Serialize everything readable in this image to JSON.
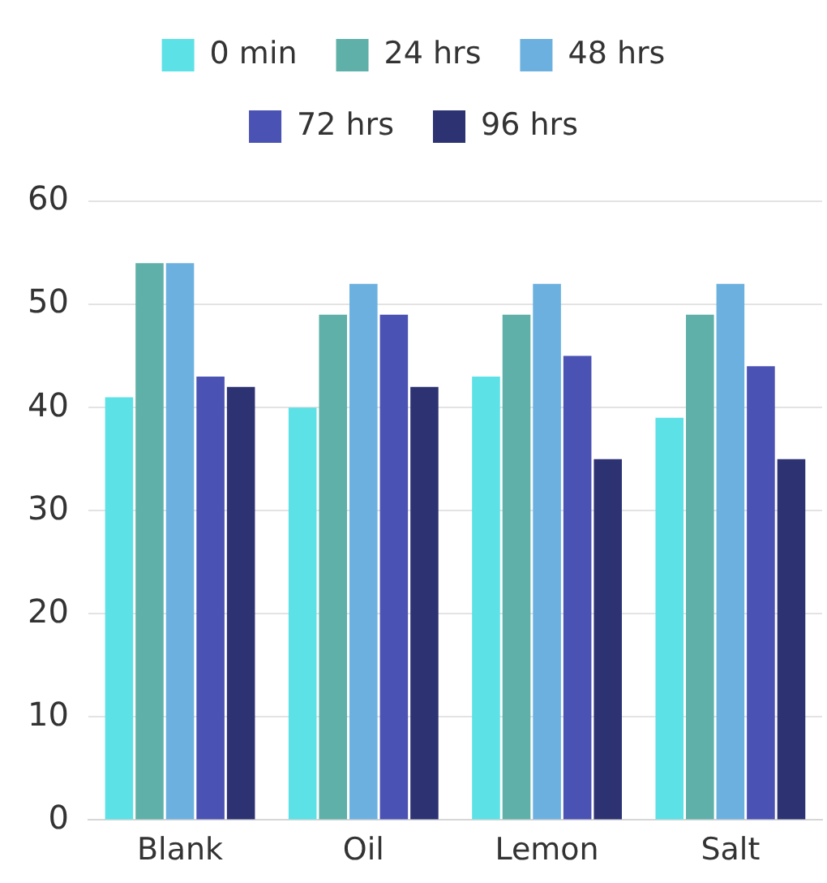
{
  "chart_data": {
    "type": "bar",
    "categories": [
      "Blank",
      "Oil",
      "Lemon",
      "Salt"
    ],
    "series": [
      {
        "name": "0 min",
        "color": "#5ce1e6",
        "values": [
          41,
          40,
          43,
          39
        ]
      },
      {
        "name": "24 hrs",
        "color": "#5fb0a9",
        "values": [
          54,
          49,
          49,
          49
        ]
      },
      {
        "name": "48 hrs",
        "color": "#6cb0df",
        "values": [
          54,
          52,
          52,
          52
        ]
      },
      {
        "name": "72 hrs",
        "color": "#4a52b3",
        "values": [
          43,
          49,
          45,
          44
        ]
      },
      {
        "name": "96 hrs",
        "color": "#2d3372",
        "values": [
          42,
          42,
          35,
          35
        ]
      }
    ],
    "ylim": [
      0,
      60
    ],
    "yticks": [
      0,
      10,
      20,
      30,
      40,
      50,
      60
    ],
    "grid": "y",
    "legend": "top"
  }
}
